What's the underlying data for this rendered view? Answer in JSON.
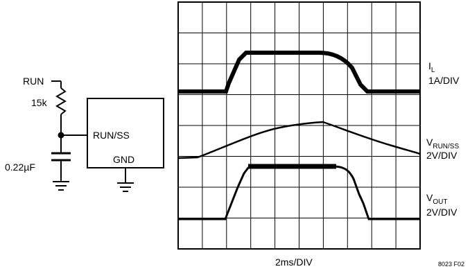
{
  "schematic": {
    "run_label": "RUN",
    "resistor_label": "15k",
    "capacitor_label": "0.22µF",
    "pin_run_ss": "RUN/SS",
    "pin_gnd": "GND"
  },
  "scope": {
    "grid_divisions_x": 10,
    "grid_divisions_y": 8,
    "x_axis_label": "2ms/DIV",
    "figure_id": "8023 F02",
    "traces": [
      {
        "label_main": "I",
        "label_sub": "L",
        "scale": "1A/DIV"
      },
      {
        "label_main": "V",
        "label_sub": "RUN/SS",
        "scale": "2V/DIV"
      },
      {
        "label_main": "V",
        "label_sub": "OUT",
        "scale": "2V/DIV"
      }
    ]
  }
}
